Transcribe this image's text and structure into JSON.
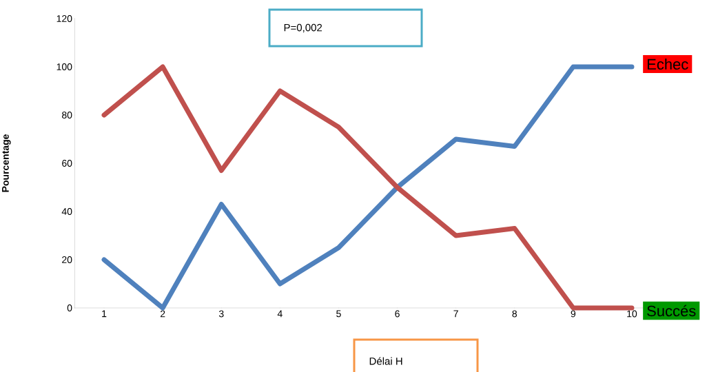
{
  "chart_data": {
    "type": "line",
    "xlabel": "Délai H",
    "ylabel": "Pourcentage",
    "x": [
      1,
      2,
      3,
      4,
      5,
      6,
      7,
      8,
      9,
      10
    ],
    "series": [
      {
        "color": "#4f81bd",
        "values": [
          20,
          0,
          43,
          10,
          25,
          50,
          70,
          67,
          100,
          100
        ]
      },
      {
        "color": "#c0504d",
        "values": [
          80,
          100,
          57,
          90,
          75,
          50,
          30,
          33,
          0,
          0
        ]
      }
    ],
    "xlim": [
      0.5,
      10.5
    ],
    "xticks": [
      1,
      2,
      3,
      4,
      5,
      6,
      7,
      8,
      9,
      10
    ],
    "ylim": [
      0,
      120
    ],
    "yticks": [
      0,
      20,
      40,
      60,
      80,
      100,
      120
    ],
    "grid": false,
    "marker": "none",
    "line_style": "solid",
    "annotations": [
      "P=0,002",
      {
        "text": "Echec",
        "x": 10,
        "y": 100
      },
      {
        "text": "Succés",
        "x": 10,
        "y": 0
      }
    ]
  }
}
